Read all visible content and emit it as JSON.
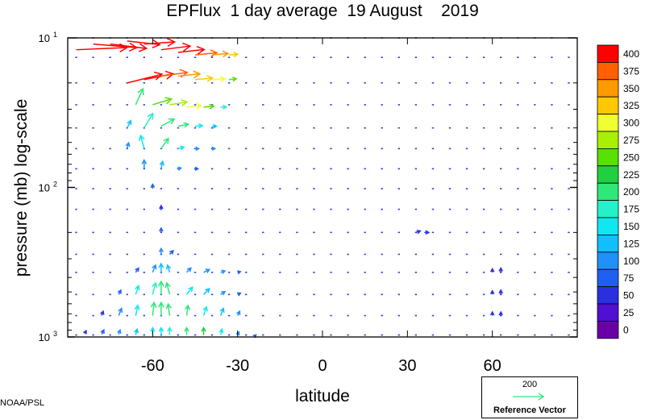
{
  "title": "EPFlux  1 day average  19 August    2019",
  "credit": "NOAA/PSL",
  "reference": {
    "magnitude": "200",
    "label": "Reference Vector",
    "color": "#2fe07a"
  },
  "chart_data": {
    "type": "vector-field",
    "title": "EPFlux  1 day average  19 August    2019",
    "xlabel": "latitude",
    "ylabel": "pressure (mb)  log-scale",
    "xlim": [
      -90,
      90
    ],
    "ylim": [
      1000,
      10
    ],
    "y_scale": "log",
    "x_ticks": [
      -60,
      -30,
      0,
      30,
      60
    ],
    "x_tick_labels": [
      "-60",
      "-30",
      "0",
      "30",
      "60"
    ],
    "y_ticks": [
      {
        "value": 10,
        "base": "10",
        "exp": "1"
      },
      {
        "value": 100,
        "base": "10",
        "exp": "2"
      },
      {
        "value": 1000,
        "base": "10",
        "exp": "3"
      }
    ],
    "colorbar": {
      "levels": [
        "400",
        "375",
        "350",
        "325",
        "300",
        "275",
        "250",
        "225",
        "200",
        "175",
        "150",
        "125",
        "100",
        "75",
        "50",
        "25",
        "0"
      ],
      "colors": [
        "#ff0000",
        "#ff6000",
        "#ff9900",
        "#ffc800",
        "#f0ff30",
        "#a8f000",
        "#58e000",
        "#20d040",
        "#2ee878",
        "#26f0c8",
        "#10e8f0",
        "#10c0ff",
        "#2090ff",
        "#2060f0",
        "#2a30e0",
        "#5010d0",
        "#6a00a8"
      ]
    },
    "grid": false,
    "vectors": [
      {
        "lat": -87,
        "p": 12,
        "u": 70,
        "v": 3,
        "mag": 410
      },
      {
        "lat": -81,
        "p": 11,
        "u": 60,
        "v": -5,
        "mag": 410
      },
      {
        "lat": -75,
        "p": 11,
        "u": 50,
        "v": -6,
        "mag": 410
      },
      {
        "lat": -69,
        "p": 10.5,
        "u": 45,
        "v": -5,
        "mag": 400
      },
      {
        "lat": -63,
        "p": 11,
        "u": 42,
        "v": 3,
        "mag": 410
      },
      {
        "lat": -57,
        "p": 12,
        "u": 40,
        "v": 5,
        "mag": 410
      },
      {
        "lat": -51,
        "p": 12.5,
        "u": 36,
        "v": 4,
        "mag": 400
      },
      {
        "lat": -45,
        "p": 13,
        "u": 30,
        "v": 3,
        "mag": 390
      },
      {
        "lat": -39,
        "p": 13,
        "u": 22,
        "v": 2,
        "mag": 360
      },
      {
        "lat": -33,
        "p": 13,
        "u": 12,
        "v": 1,
        "mag": 330
      },
      {
        "lat": -69,
        "p": 20,
        "u": 48,
        "v": 12,
        "mag": 400
      },
      {
        "lat": -63,
        "p": 19,
        "u": 40,
        "v": 8,
        "mag": 400
      },
      {
        "lat": -57,
        "p": 18,
        "u": 36,
        "v": 5,
        "mag": 380
      },
      {
        "lat": -51,
        "p": 18,
        "u": 30,
        "v": 3,
        "mag": 350
      },
      {
        "lat": -45,
        "p": 19,
        "u": 24,
        "v": 2,
        "mag": 330
      },
      {
        "lat": -39,
        "p": 19,
        "u": 18,
        "v": 1,
        "mag": 300
      },
      {
        "lat": -33,
        "p": 19,
        "u": 10,
        "v": 1,
        "mag": 270
      },
      {
        "lat": -66,
        "p": 28,
        "u": 10,
        "v": 22,
        "mag": 200
      },
      {
        "lat": -60,
        "p": 28,
        "u": 26,
        "v": 8,
        "mag": 260
      },
      {
        "lat": -54,
        "p": 28,
        "u": 24,
        "v": 4,
        "mag": 280
      },
      {
        "lat": -48,
        "p": 29,
        "u": 20,
        "v": 2,
        "mag": 300
      },
      {
        "lat": -42,
        "p": 29,
        "u": 14,
        "v": 1,
        "mag": 270
      },
      {
        "lat": -36,
        "p": 29,
        "u": 8,
        "v": 0,
        "mag": 180
      },
      {
        "lat": -69,
        "p": 40,
        "u": 5,
        "v": 10,
        "mag": 130
      },
      {
        "lat": -63,
        "p": 40,
        "u": 12,
        "v": 20,
        "mag": 180
      },
      {
        "lat": -57,
        "p": 39,
        "u": 18,
        "v": 10,
        "mag": 220
      },
      {
        "lat": -51,
        "p": 39,
        "u": 14,
        "v": 3,
        "mag": 200
      },
      {
        "lat": -45,
        "p": 39,
        "u": 10,
        "v": 1,
        "mag": 170
      },
      {
        "lat": -39,
        "p": 39,
        "u": 6,
        "v": 0,
        "mag": 140
      },
      {
        "lat": -69,
        "p": 55,
        "u": 2,
        "v": 8,
        "mag": 100
      },
      {
        "lat": -63,
        "p": 55,
        "u": -5,
        "v": 18,
        "mag": 150
      },
      {
        "lat": -57,
        "p": 55,
        "u": 10,
        "v": 14,
        "mag": 200
      },
      {
        "lat": -51,
        "p": 55,
        "u": 8,
        "v": 2,
        "mag": 160
      },
      {
        "lat": -45,
        "p": 55,
        "u": 5,
        "v": 0,
        "mag": 120
      },
      {
        "lat": -39,
        "p": 55,
        "u": 4,
        "v": 0,
        "mag": 100
      },
      {
        "lat": -63,
        "p": 75,
        "u": 0,
        "v": 12,
        "mag": 120
      },
      {
        "lat": -57,
        "p": 75,
        "u": 2,
        "v": 10,
        "mag": 140
      },
      {
        "lat": -51,
        "p": 75,
        "u": 4,
        "v": 1,
        "mag": 100
      },
      {
        "lat": -45,
        "p": 75,
        "u": 4,
        "v": 0,
        "mag": 90
      },
      {
        "lat": -60,
        "p": 102,
        "u": 0,
        "v": 6,
        "mag": 80
      },
      {
        "lat": -57,
        "p": 140,
        "u": 0,
        "v": 5,
        "mag": 70
      },
      {
        "lat": -57,
        "p": 200,
        "u": 0,
        "v": 6,
        "mag": 80
      },
      {
        "lat": -57,
        "p": 280,
        "u": 0,
        "v": 8,
        "mag": 100
      },
      {
        "lat": -54,
        "p": 280,
        "u": 5,
        "v": 5,
        "mag": 90
      },
      {
        "lat": -66,
        "p": 370,
        "u": 4,
        "v": 6,
        "mag": 80
      },
      {
        "lat": -60,
        "p": 370,
        "u": 4,
        "v": 10,
        "mag": 120
      },
      {
        "lat": -57,
        "p": 370,
        "u": 0,
        "v": 12,
        "mag": 140
      },
      {
        "lat": -54,
        "p": 370,
        "u": -3,
        "v": 10,
        "mag": 130
      },
      {
        "lat": -48,
        "p": 370,
        "u": 6,
        "v": 6,
        "mag": 100
      },
      {
        "lat": -42,
        "p": 370,
        "u": 8,
        "v": 4,
        "mag": 100
      },
      {
        "lat": -36,
        "p": 370,
        "u": 6,
        "v": 2,
        "mag": 110
      },
      {
        "lat": -30,
        "p": 370,
        "u": 4,
        "v": 1,
        "mag": 90
      },
      {
        "lat": -72,
        "p": 520,
        "u": 3,
        "v": 6,
        "mag": 80
      },
      {
        "lat": -66,
        "p": 520,
        "u": 4,
        "v": 12,
        "mag": 150
      },
      {
        "lat": -60,
        "p": 520,
        "u": 4,
        "v": 16,
        "mag": 190
      },
      {
        "lat": -57,
        "p": 520,
        "u": 0,
        "v": 18,
        "mag": 210
      },
      {
        "lat": -54,
        "p": 520,
        "u": -4,
        "v": 16,
        "mag": 200
      },
      {
        "lat": -48,
        "p": 520,
        "u": 8,
        "v": 10,
        "mag": 170
      },
      {
        "lat": -42,
        "p": 520,
        "u": 8,
        "v": 8,
        "mag": 130
      },
      {
        "lat": -36,
        "p": 520,
        "u": 6,
        "v": 4,
        "mag": 100
      },
      {
        "lat": -30,
        "p": 520,
        "u": 4,
        "v": 2,
        "mag": 90
      },
      {
        "lat": -78,
        "p": 720,
        "u": 2,
        "v": 6,
        "mag": 70
      },
      {
        "lat": -72,
        "p": 720,
        "u": 4,
        "v": 10,
        "mag": 110
      },
      {
        "lat": -66,
        "p": 720,
        "u": 3,
        "v": 14,
        "mag": 150
      },
      {
        "lat": -60,
        "p": 720,
        "u": 2,
        "v": 18,
        "mag": 200
      },
      {
        "lat": -57,
        "p": 720,
        "u": 0,
        "v": 18,
        "mag": 220
      },
      {
        "lat": -54,
        "p": 720,
        "u": -2,
        "v": 16,
        "mag": 210
      },
      {
        "lat": -48,
        "p": 720,
        "u": 2,
        "v": 14,
        "mag": 200
      },
      {
        "lat": -42,
        "p": 720,
        "u": 4,
        "v": 12,
        "mag": 160
      },
      {
        "lat": -36,
        "p": 720,
        "u": 4,
        "v": 10,
        "mag": 130
      },
      {
        "lat": -30,
        "p": 720,
        "u": 3,
        "v": 6,
        "mag": 100
      },
      {
        "lat": -84,
        "p": 950,
        "u": 2,
        "v": 4,
        "mag": 60
      },
      {
        "lat": -78,
        "p": 960,
        "u": 3,
        "v": 6,
        "mag": 90
      },
      {
        "lat": -72,
        "p": 960,
        "u": 2,
        "v": 6,
        "mag": 110
      },
      {
        "lat": -66,
        "p": 970,
        "u": 2,
        "v": 8,
        "mag": 140
      },
      {
        "lat": -60,
        "p": 970,
        "u": 0,
        "v": 10,
        "mag": 160
      },
      {
        "lat": -57,
        "p": 970,
        "u": 0,
        "v": 10,
        "mag": 170
      },
      {
        "lat": -54,
        "p": 970,
        "u": 0,
        "v": 10,
        "mag": 190
      },
      {
        "lat": -48,
        "p": 970,
        "u": 0,
        "v": 10,
        "mag": 220
      },
      {
        "lat": -42,
        "p": 970,
        "u": 0,
        "v": 10,
        "mag": 240
      },
      {
        "lat": -36,
        "p": 970,
        "u": 2,
        "v": 8,
        "mag": 160
      },
      {
        "lat": -30,
        "p": 970,
        "u": 2,
        "v": 4,
        "mag": 110
      },
      {
        "lat": -24,
        "p": 990,
        "u": 2,
        "v": 2,
        "mag": 80
      },
      {
        "lat": 33,
        "p": 200,
        "u": 6,
        "v": 2,
        "mag": 70
      },
      {
        "lat": 36,
        "p": 200,
        "u": 6,
        "v": 0,
        "mag": 60
      },
      {
        "lat": 60,
        "p": 370,
        "u": 0,
        "v": 5,
        "mag": 60
      },
      {
        "lat": 63,
        "p": 370,
        "u": 0,
        "v": 6,
        "mag": 70
      },
      {
        "lat": 60,
        "p": 520,
        "u": 0,
        "v": 5,
        "mag": 60
      },
      {
        "lat": 63,
        "p": 520,
        "u": 0,
        "v": 6,
        "mag": 60
      },
      {
        "lat": 60,
        "p": 720,
        "u": 0,
        "v": 5,
        "mag": 50
      },
      {
        "lat": 63,
        "p": 720,
        "u": 0,
        "v": 5,
        "mag": 60
      }
    ]
  }
}
